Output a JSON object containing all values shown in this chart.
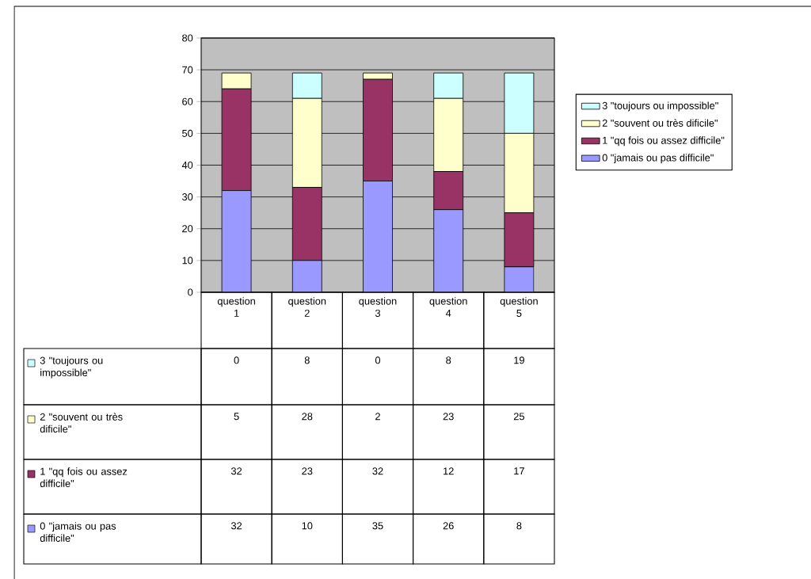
{
  "chart_data": {
    "type": "bar",
    "stacked": true,
    "categories": [
      "question 1",
      "question 2",
      "question 3",
      "question 4",
      "question 5"
    ],
    "series": [
      {
        "name": "0 \"jamais ou pas difficile\"",
        "color": "#9999ff",
        "values": [
          32,
          10,
          35,
          26,
          8
        ]
      },
      {
        "name": "1 \"qq fois ou assez difficile\"",
        "color": "#993366",
        "values": [
          32,
          23,
          32,
          12,
          17
        ]
      },
      {
        "name": "2 \"souvent ou très dificile\"",
        "color": "#ffffcc",
        "values": [
          5,
          28,
          2,
          23,
          25
        ]
      },
      {
        "name": "3 \"toujours ou impossible\"",
        "color": "#ccffff",
        "values": [
          0,
          8,
          0,
          8,
          19
        ]
      }
    ],
    "ylim": [
      0,
      80
    ],
    "yticks": [
      0,
      10,
      20,
      30,
      40,
      50,
      60,
      70,
      80
    ],
    "grid": "y",
    "legend": "right",
    "data_labels": true
  }
}
